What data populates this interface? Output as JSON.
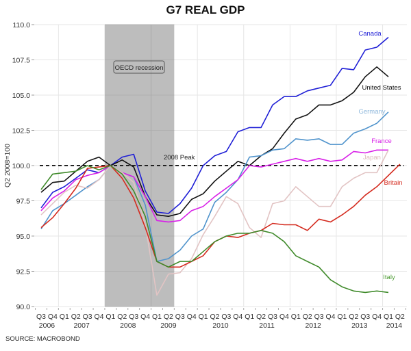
{
  "chart_data": {
    "type": "line",
    "title": "G7 REAL GDP",
    "xlabel": "",
    "ylabel": "Q2 2008=100",
    "ylim": [
      90,
      110
    ],
    "yticks": [
      "90.0",
      "92.5",
      "95.0",
      "97.5",
      "100.0",
      "102.5",
      "105.0",
      "107.5",
      "110.0"
    ],
    "ytick_values": [
      90,
      92.5,
      95,
      97.5,
      100,
      102.5,
      105,
      107.5,
      110
    ],
    "quarter_labels": [
      "Q3",
      "Q4",
      "Q1",
      "Q2",
      "Q3",
      "Q4",
      "Q1",
      "Q2",
      "Q3",
      "Q4",
      "Q1",
      "Q2",
      "Q3",
      "Q4",
      "Q1",
      "Q2",
      "Q3",
      "Q4",
      "Q1",
      "Q2",
      "Q3",
      "Q4",
      "Q1",
      "Q2",
      "Q3",
      "Q4",
      "Q1",
      "Q2",
      "Q3",
      "Q4",
      "Q1",
      "Q2"
    ],
    "year_labels": [
      {
        "label": "2006",
        "center_index": 0.5
      },
      {
        "label": "2007",
        "center_index": 3.5
      },
      {
        "label": "2008",
        "center_index": 7.5
      },
      {
        "label": "2009",
        "center_index": 11
      },
      {
        "label": "2010",
        "center_index": 15.5
      },
      {
        "label": "2011",
        "center_index": 19.5
      },
      {
        "label": "2012",
        "center_index": 23.5
      },
      {
        "label": "2013",
        "center_index": 27.5
      },
      {
        "label": "2014",
        "center_index": 30.5
      }
    ],
    "x": [
      "2006Q3",
      "2006Q4",
      "2007Q1",
      "2007Q2",
      "2007Q3",
      "2007Q4",
      "2008Q1",
      "2008Q2",
      "2008Q3",
      "2008Q4",
      "2009Q1",
      "2009Q2",
      "2009Q3",
      "2009Q4",
      "2010Q1",
      "2010Q2",
      "2010Q3",
      "2010Q4",
      "2011Q1",
      "2011Q2",
      "2011Q3",
      "2011Q4",
      "2012Q1",
      "2012Q2",
      "2012Q3",
      "2012Q4",
      "2013Q1",
      "2013Q2",
      "2013Q3",
      "2013Q4",
      "2014Q1",
      "2014Q2"
    ],
    "grid": true,
    "legend": "inline labels at line ends (right)",
    "recession_band": {
      "label": "OECD recession",
      "start_index": 5.5,
      "end_index": 11.5,
      "color": "#bdbdbd"
    },
    "reference_line": {
      "label": "2008 Peak",
      "value": 100,
      "style": "dashed",
      "color": "#222222"
    },
    "series": [
      {
        "name": "Canada",
        "color": "#1f1fd6",
        "label_color": "#1f1fd6",
        "values": [
          97.0,
          98.1,
          98.5,
          99.1,
          99.7,
          99.5,
          100,
          100.6,
          100.8,
          98.2,
          96.7,
          96.6,
          97.3,
          98.4,
          100.0,
          100.7,
          101.0,
          102.4,
          102.7,
          102.7,
          104.3,
          104.9,
          104.9,
          105.3,
          105.5,
          105.7,
          106.9,
          106.8,
          108.2,
          108.4,
          109.1
        ]
      },
      {
        "name": "United States",
        "color": "#111111",
        "label_color": "#111111",
        "values": [
          98.1,
          98.8,
          98.9,
          99.6,
          100.3,
          100.6,
          100,
          100.4,
          99.9,
          97.8,
          96.5,
          96.4,
          96.6,
          97.6,
          98.0,
          98.9,
          99.6,
          100.3,
          100.0,
          100.7,
          101.2,
          102.3,
          103.3,
          103.6,
          104.3,
          104.3,
          104.6,
          105.2,
          106.3,
          107.0,
          106.3
        ]
      },
      {
        "name": "Germany",
        "color": "#4f93cc",
        "label_color": "#8fb8dc",
        "values": [
          95.5,
          96.8,
          97.3,
          97.9,
          98.5,
          99.0,
          100,
          99.5,
          99.2,
          97.2,
          93.2,
          93.4,
          94.0,
          95.0,
          95.5,
          97.4,
          98.1,
          99.0,
          100.6,
          100.7,
          101.1,
          101.2,
          101.9,
          101.8,
          101.9,
          101.5,
          101.5,
          102.3,
          102.6,
          103.0,
          103.8
        ]
      },
      {
        "name": "France",
        "color": "#d820e8",
        "label_color": "#d820e8",
        "values": [
          96.8,
          97.7,
          98.2,
          99.0,
          99.3,
          99.5,
          100,
          99.5,
          99.2,
          97.8,
          96.1,
          96.0,
          96.1,
          96.8,
          97.1,
          97.8,
          98.4,
          99.0,
          100.0,
          99.9,
          100.1,
          100.3,
          100.5,
          100.3,
          100.5,
          100.3,
          100.4,
          101.0,
          100.9,
          101.1,
          101.1
        ]
      },
      {
        "name": "Japan",
        "color": "#e2c4c4",
        "label_color": "#dcbcbc",
        "values": [
          96.5,
          97.3,
          98.1,
          98.6,
          98.4,
          99.0,
          100,
          99.5,
          98.8,
          95.8,
          90.8,
          92.3,
          92.4,
          93.4,
          95.1,
          96.4,
          97.8,
          97.3,
          95.6,
          94.9,
          97.3,
          97.5,
          98.5,
          97.8,
          97.1,
          97.1,
          98.5,
          99.1,
          99.5,
          99.5,
          101.1
        ]
      },
      {
        "name": "Britain",
        "color": "#d42a1e",
        "label_color": "#d42a1e",
        "values": [
          95.6,
          96.3,
          97.3,
          98.4,
          99.8,
          99.9,
          100,
          99.1,
          97.7,
          95.6,
          93.2,
          92.8,
          92.8,
          93.2,
          93.6,
          94.6,
          95.0,
          94.9,
          95.2,
          95.4,
          95.9,
          95.8,
          95.8,
          95.4,
          96.2,
          96.0,
          96.5,
          97.1,
          97.9,
          98.5,
          99.3,
          100.1
        ]
      },
      {
        "name": "Italy",
        "color": "#3f8a2a",
        "label_color": "#4a9a30",
        "values": [
          98.3,
          99.4,
          99.5,
          99.6,
          100.0,
          99.7,
          100,
          99.4,
          98.2,
          96.4,
          93.2,
          92.8,
          93.2,
          93.2,
          93.9,
          94.6,
          95.0,
          95.2,
          95.2,
          95.4,
          95.2,
          94.6,
          93.6,
          93.2,
          92.8,
          91.9,
          91.4,
          91.1,
          91.0,
          91.1,
          91.0
        ]
      }
    ],
    "source": "SOURCE: MACROBOND"
  }
}
